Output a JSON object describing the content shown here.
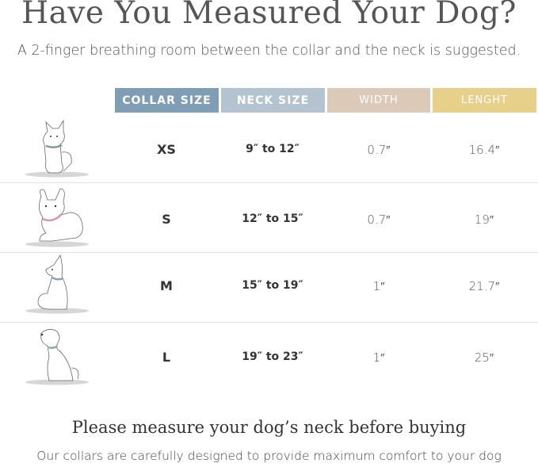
{
  "title": "Have You Measured Your Dog?",
  "subtitle": "A 2-finger breathing room between the collar and the neck is suggested.",
  "headers": [
    {
      "label": "COLLAR SIZE",
      "color": "#7f9db4"
    },
    {
      "label": "NECK SIZE",
      "color": "#b3c3cf"
    },
    {
      "label": "WIDTH",
      "color": "#dccab9"
    },
    {
      "label": "LENGHT",
      "color": "#e6d08a"
    }
  ],
  "rows": [
    {
      "size": "XS",
      "neck": "9″ to 12″",
      "width": "0.7″",
      "length": "16.4″",
      "dog_icon": "small-fluffy-dog-icon",
      "collar_color": "#7e9c94"
    },
    {
      "size": "S",
      "neck": "12″ to 15″",
      "width": "0.7″",
      "length": "19″",
      "dog_icon": "french-bulldog-icon",
      "collar_color": "#d79a9a"
    },
    {
      "size": "M",
      "neck": "15″ to 19″",
      "width": "1″",
      "length": "21.7″",
      "dog_icon": "sitting-dog-icon",
      "collar_color": "#8aa0a8"
    },
    {
      "size": "L",
      "neck": "19″ to 23″",
      "width": "1″",
      "length": "25″",
      "dog_icon": "labrador-icon",
      "collar_color": "#7fb3b0"
    }
  ],
  "footer": {
    "heading": "Please measure your dog’s neck before buying",
    "text": "Our collars are carefully designed to provide maximum comfort to your dog"
  }
}
